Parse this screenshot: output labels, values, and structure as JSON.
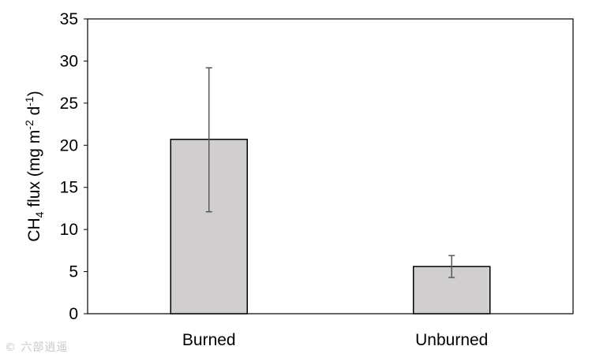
{
  "chart_data": {
    "type": "bar",
    "categories": [
      "Burned",
      "Unburned"
    ],
    "values": [
      20.7,
      5.6
    ],
    "error_low": [
      12.1,
      4.3
    ],
    "error_high": [
      29.2,
      6.9
    ],
    "ylim": [
      0,
      35
    ],
    "yticks": [
      "0",
      "5",
      "10",
      "15",
      "20",
      "25",
      "30",
      "35"
    ],
    "ytick_values": [
      0,
      5,
      10,
      15,
      20,
      25,
      30,
      35
    ],
    "ylabel": {
      "p1": "CH",
      "p1_sub": "4",
      "p2": " flux (mg m",
      "p2_sup": "-2",
      "p3": " d",
      "p3_sup": "-1",
      "p4": ")"
    },
    "xlabel": "",
    "title": "",
    "grid": false,
    "legend": "none",
    "colors": {
      "bar_fill": "#d0cece",
      "bar_stroke": "#000000",
      "error_bar": "#595959",
      "axis": "#000000"
    }
  },
  "watermark": "© 六部逍遥"
}
